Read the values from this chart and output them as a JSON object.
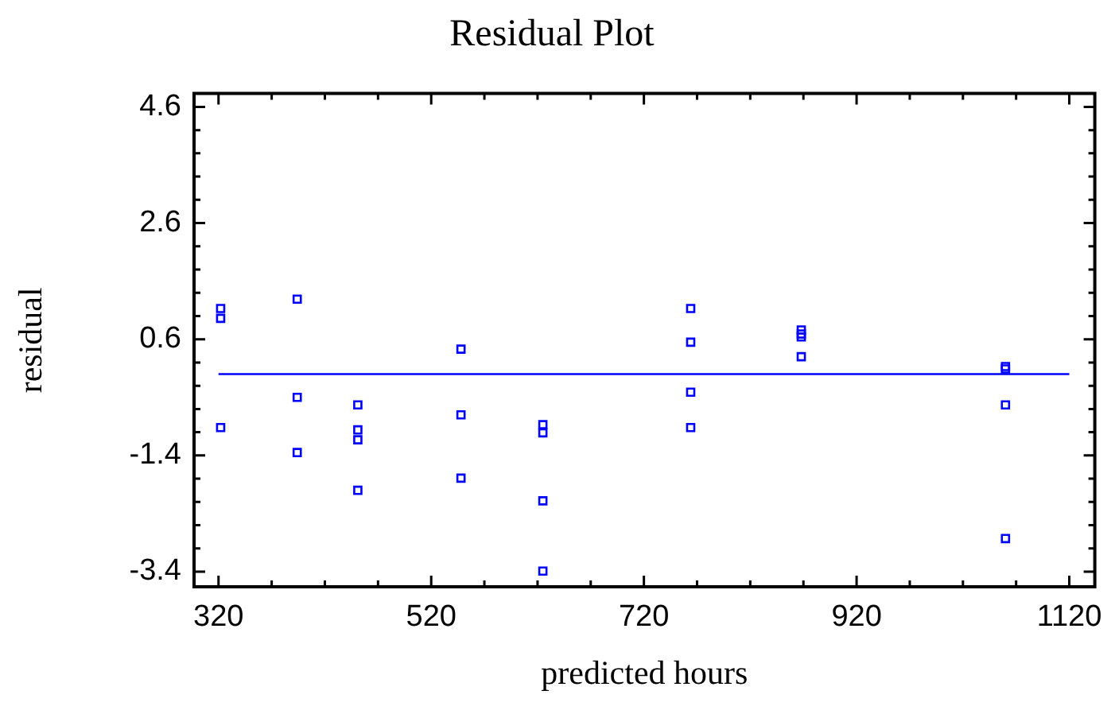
{
  "chart_data": {
    "type": "scatter",
    "title": "Residual Plot",
    "xlabel": "predicted hours",
    "ylabel": "residual",
    "xlim": [
      297,
      1144
    ],
    "ylim": [
      -3.66,
      4.83
    ],
    "xticks": [
      320,
      {
        "value": 370,
        "label": null
      },
      {
        "value": 420,
        "label": null
      },
      {
        "value": 470,
        "label": null
      },
      520,
      {
        "value": 570,
        "label": null
      },
      {
        "value": 620,
        "label": null
      },
      {
        "value": 670,
        "label": null
      },
      720,
      {
        "value": 770,
        "label": null
      },
      {
        "value": 820,
        "label": null
      },
      {
        "value": 870,
        "label": null
      },
      920,
      {
        "value": 970,
        "label": null
      },
      {
        "value": 1020,
        "label": null
      },
      {
        "value": 1070,
        "label": null
      },
      1120
    ],
    "yticks": [
      -3.4,
      {
        "value": -3,
        "label": null
      },
      {
        "value": -2.6,
        "label": null
      },
      {
        "value": -2.2,
        "label": null
      },
      {
        "value": -1.8,
        "label": null
      },
      -1.4,
      {
        "value": -1,
        "label": null
      },
      {
        "value": -0.6,
        "label": null
      },
      {
        "value": -0.2,
        "label": null
      },
      {
        "value": 0.2,
        "label": null
      },
      0.6,
      {
        "value": 1,
        "label": null
      },
      {
        "value": 1.4,
        "label": null
      },
      {
        "value": 1.8,
        "label": null
      },
      {
        "value": 2.2,
        "label": null
      },
      2.6,
      {
        "value": 3,
        "label": null
      },
      {
        "value": 3.4,
        "label": null
      },
      {
        "value": 3.8,
        "label": null
      },
      {
        "value": 4.2,
        "label": null
      },
      4.6
    ],
    "grid": false,
    "legend": false,
    "marker": "square",
    "series": [
      {
        "color": "#0000ff",
        "x": [
          322,
          322,
          322,
          394,
          394,
          394,
          451,
          451,
          451,
          451,
          548,
          548,
          548,
          625,
          625,
          625,
          625,
          764,
          764,
          764,
          764,
          868,
          868,
          868,
          868,
          1060,
          1060,
          1060,
          1060
        ],
        "values": [
          1.13,
          0.96,
          -0.92,
          1.29,
          -0.4,
          -1.35,
          -0.53,
          -0.96,
          -1.13,
          -2.0,
          0.43,
          -0.7,
          -1.79,
          -0.87,
          -1.01,
          -2.18,
          -3.39,
          1.13,
          0.55,
          -0.31,
          -0.92,
          0.76,
          0.69,
          0.64,
          0.3,
          0.13,
          0.09,
          -0.53,
          -2.83
        ]
      },
      {
        "type": "line",
        "color": "#0000ff",
        "marker": "none",
        "x": [
          320,
          1120
        ],
        "values": [
          0,
          0
        ]
      }
    ]
  }
}
